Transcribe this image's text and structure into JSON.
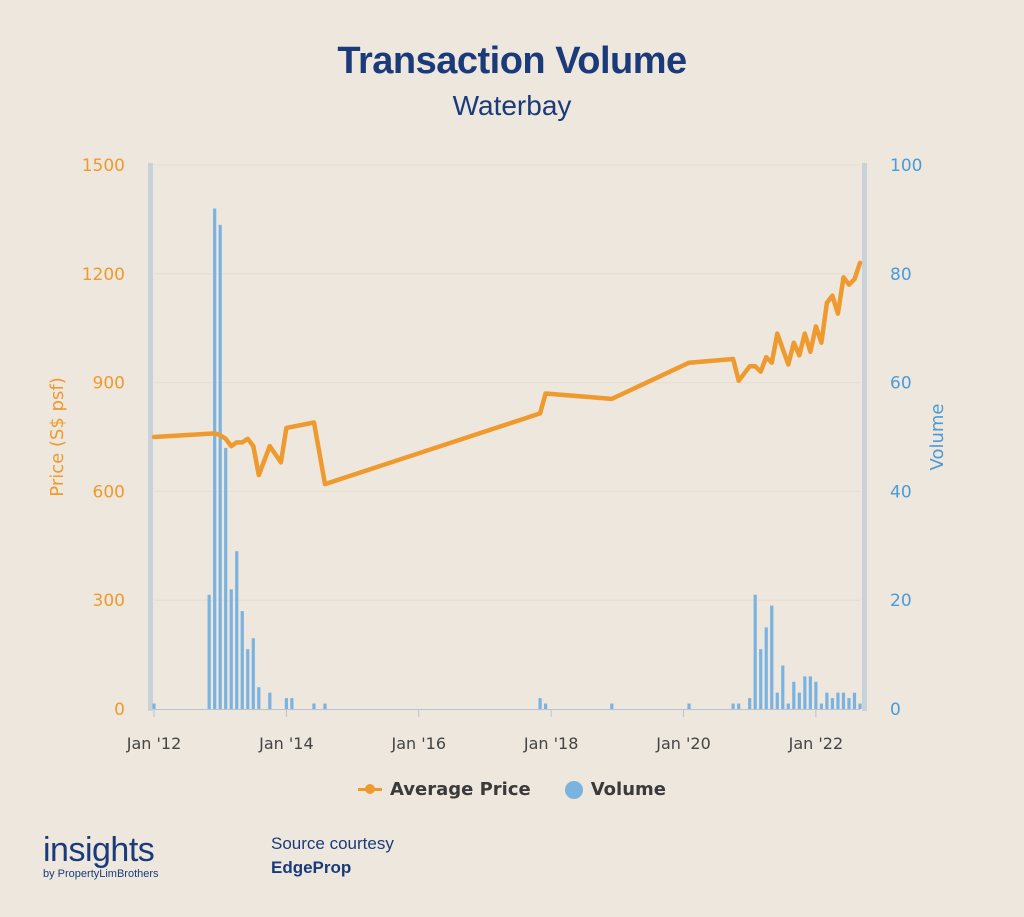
{
  "header": {
    "title": "Transaction Volume",
    "subtitle": "Waterbay"
  },
  "legend": {
    "price_label": "Average Price",
    "volume_label": "Volume"
  },
  "footer": {
    "brand_name": "insights",
    "brand_tagline": "by PropertyLimBrothers",
    "source_line1": "Source courtesy",
    "source_line2": "EdgeProp"
  },
  "colors": {
    "price_line": "#EF9A2E",
    "volume_bars": "#7AB3E0",
    "title": "#1B3A7A",
    "background": "#EDE7DD",
    "axis_line": "#C9D1DB"
  },
  "chart_data": {
    "type": "bar+line",
    "title": "Transaction Volume",
    "subtitle": "Waterbay",
    "xlabel": "",
    "y_left_label": "Price (S$ psf)",
    "y_right_label": "Volume",
    "y_left_lim": [
      0,
      1500
    ],
    "y_right_lim": [
      0,
      100
    ],
    "y_left_ticks": [
      "0",
      "300",
      "600",
      "900",
      "1200",
      "1500"
    ],
    "y_right_ticks": [
      "0",
      "20",
      "40",
      "60",
      "80",
      "100"
    ],
    "x_ticks": [
      "Jan '12",
      "Jan '14",
      "Jan '16",
      "Jan '18",
      "Jan '20",
      "Jan '22"
    ],
    "x_range": [
      "2012-01",
      "2022-09"
    ],
    "legend_position": "bottom-center",
    "series": [
      {
        "name": "Average Price",
        "kind": "line",
        "axis": "left",
        "points": [
          [
            "2012-01",
            750
          ],
          [
            "2012-12",
            760
          ],
          [
            "2013-01",
            755
          ],
          [
            "2013-02",
            745
          ],
          [
            "2013-03",
            725
          ],
          [
            "2013-04",
            735
          ],
          [
            "2013-05",
            735
          ],
          [
            "2013-06",
            745
          ],
          [
            "2013-07",
            725
          ],
          [
            "2013-08",
            645
          ],
          [
            "2013-10",
            725
          ],
          [
            "2013-12",
            680
          ],
          [
            "2014-01",
            775
          ],
          [
            "2014-06",
            790
          ],
          [
            "2014-08",
            620
          ],
          [
            "2017-11",
            815
          ],
          [
            "2017-12",
            870
          ],
          [
            "2018-12",
            855
          ],
          [
            "2020-02",
            955
          ],
          [
            "2020-10",
            965
          ],
          [
            "2020-11",
            905
          ],
          [
            "2021-01",
            945
          ],
          [
            "2021-02",
            945
          ],
          [
            "2021-03",
            930
          ],
          [
            "2021-04",
            970
          ],
          [
            "2021-05",
            955
          ],
          [
            "2021-06",
            1035
          ],
          [
            "2021-08",
            950
          ],
          [
            "2021-09",
            1010
          ],
          [
            "2021-10",
            975
          ],
          [
            "2021-11",
            1035
          ],
          [
            "2021-12",
            985
          ],
          [
            "2022-01",
            1055
          ],
          [
            "2022-02",
            1010
          ],
          [
            "2022-03",
            1120
          ],
          [
            "2022-04",
            1140
          ],
          [
            "2022-05",
            1090
          ],
          [
            "2022-06",
            1190
          ],
          [
            "2022-07",
            1170
          ],
          [
            "2022-08",
            1185
          ],
          [
            "2022-09",
            1230
          ]
        ]
      },
      {
        "name": "Volume",
        "kind": "bar",
        "axis": "right",
        "points": [
          [
            "2012-01",
            1
          ],
          [
            "2012-11",
            21
          ],
          [
            "2012-12",
            92
          ],
          [
            "2013-01",
            89
          ],
          [
            "2013-02",
            48
          ],
          [
            "2013-03",
            22
          ],
          [
            "2013-04",
            29
          ],
          [
            "2013-05",
            18
          ],
          [
            "2013-06",
            11
          ],
          [
            "2013-07",
            13
          ],
          [
            "2013-08",
            4
          ],
          [
            "2013-10",
            3
          ],
          [
            "2014-01",
            2
          ],
          [
            "2014-02",
            2
          ],
          [
            "2014-06",
            1
          ],
          [
            "2014-08",
            1
          ],
          [
            "2017-11",
            2
          ],
          [
            "2017-12",
            1
          ],
          [
            "2018-12",
            1
          ],
          [
            "2020-02",
            1
          ],
          [
            "2020-10",
            1
          ],
          [
            "2020-11",
            1
          ],
          [
            "2021-01",
            2
          ],
          [
            "2021-02",
            21
          ],
          [
            "2021-03",
            11
          ],
          [
            "2021-04",
            15
          ],
          [
            "2021-05",
            19
          ],
          [
            "2021-06",
            3
          ],
          [
            "2021-07",
            8
          ],
          [
            "2021-08",
            1
          ],
          [
            "2021-09",
            5
          ],
          [
            "2021-10",
            3
          ],
          [
            "2021-11",
            6
          ],
          [
            "2021-12",
            6
          ],
          [
            "2022-01",
            5
          ],
          [
            "2022-02",
            1
          ],
          [
            "2022-03",
            3
          ],
          [
            "2022-04",
            2
          ],
          [
            "2022-05",
            3
          ],
          [
            "2022-06",
            3
          ],
          [
            "2022-07",
            2
          ],
          [
            "2022-08",
            3
          ],
          [
            "2022-09",
            1
          ]
        ]
      }
    ]
  }
}
